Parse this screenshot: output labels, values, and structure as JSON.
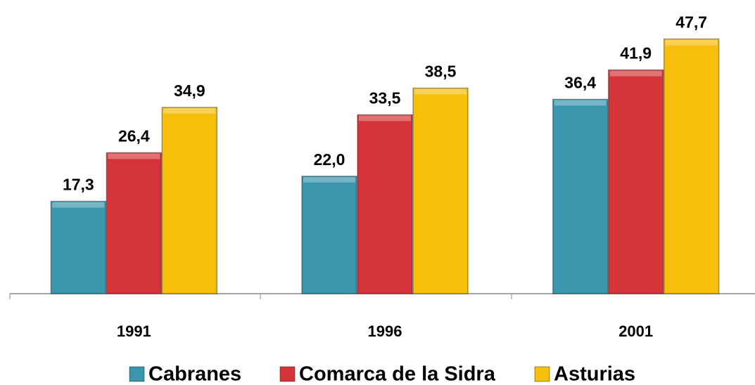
{
  "chart_data": {
    "type": "bar",
    "categories": [
      "1991",
      "1996",
      "2001"
    ],
    "series": [
      {
        "name": "Cabranes",
        "color": "#3a96ad",
        "values": [
          17.3,
          22.0,
          36.4
        ],
        "value_labels": [
          "17,3",
          "22,0",
          "36,4"
        ]
      },
      {
        "name": "Comarca de la Sidra",
        "color": "#d4343a",
        "values": [
          26.4,
          33.5,
          41.9
        ],
        "value_labels": [
          "26,4",
          "33,5",
          "41,9"
        ]
      },
      {
        "name": "Asturias",
        "color": "#f7be0c",
        "values": [
          34.9,
          38.5,
          47.7
        ],
        "value_labels": [
          "34,9",
          "38,5",
          "47,7"
        ]
      }
    ],
    "ylim": [
      0,
      55
    ]
  }
}
